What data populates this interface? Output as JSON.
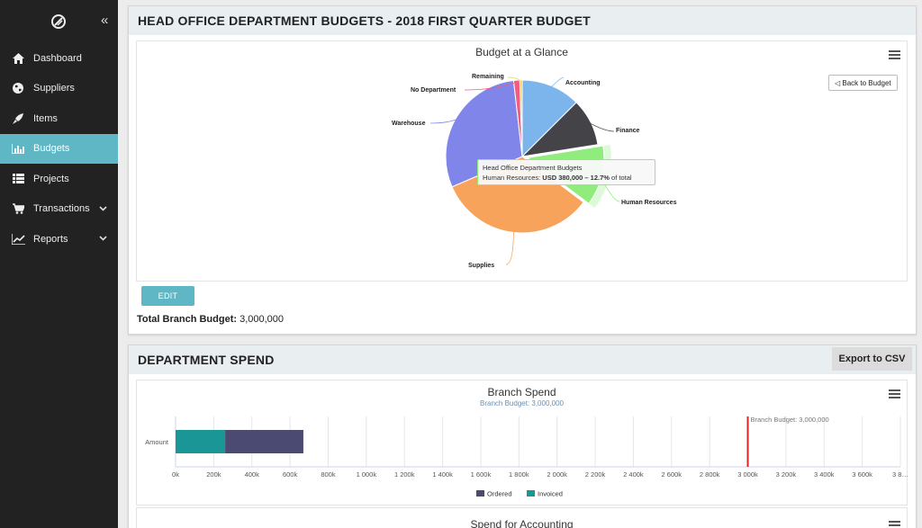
{
  "sidebar": {
    "items": [
      {
        "label": "Dashboard",
        "icon": "home-icon"
      },
      {
        "label": "Suppliers",
        "icon": "globe-icon"
      },
      {
        "label": "Items",
        "icon": "rocket-icon"
      },
      {
        "label": "Budgets",
        "icon": "bar-chart-icon",
        "active": true
      },
      {
        "label": "Projects",
        "icon": "list-icon"
      },
      {
        "label": "Transactions",
        "icon": "cart-icon"
      },
      {
        "label": "Reports",
        "icon": "line-chart-icon"
      }
    ]
  },
  "budget_panel": {
    "title": "HEAD OFFICE DEPARTMENT BUDGETS - 2018 FIRST QUARTER BUDGET",
    "back_label": "◁ Back to Budget",
    "tooltip": {
      "line1": "Head Office Department Budgets",
      "series": "Human Resources:",
      "value": "USD 380,000 – 12.7%",
      "suffix": "of total"
    },
    "edit_label": "EDIT",
    "total_label": "Total Branch Budget:",
    "total_value": "3,000,000"
  },
  "spend_panel": {
    "title": "DEPARTMENT SPEND",
    "export_label": "Export to CSV",
    "accounting_title": "Spend for Accounting"
  },
  "chart_data": [
    {
      "type": "pie",
      "title": "Budget at a Glance",
      "slices": [
        {
          "name": "Accounting",
          "value": 12.5,
          "color": "#7cb5ec"
        },
        {
          "name": "Finance",
          "value": 10.0,
          "color": "#434348"
        },
        {
          "name": "Human Resources",
          "value": 12.7,
          "color": "#90ed7d"
        },
        {
          "name": "Supplies",
          "value": 33.3,
          "color": "#f7a35c"
        },
        {
          "name": "Warehouse",
          "value": 29.7,
          "color": "#8085e9"
        },
        {
          "name": "No Department",
          "value": 1.3,
          "color": "#f15c80"
        },
        {
          "name": "Remaining",
          "value": 0.5,
          "color": "#e4d354"
        }
      ]
    },
    {
      "type": "bar",
      "title": "Branch Spend",
      "subtitle": "Branch Budget: 3,000,000",
      "categories": [
        "Amount"
      ],
      "series": [
        {
          "name": "Ordered",
          "values": [
            410000
          ],
          "color": "#4a4a73"
        },
        {
          "name": "Invoiced",
          "values": [
            260000
          ],
          "color": "#1a9696"
        }
      ],
      "plot_line": {
        "value": 3000000,
        "label": "Branch Budget: 3,000,000",
        "color": "#d9262b"
      },
      "xlim": [
        0,
        3800000
      ],
      "xticks": [
        "0k",
        "200k",
        "400k",
        "600k",
        "800k",
        "1 000k",
        "1 200k",
        "1 400k",
        "1 600k",
        "1 800k",
        "2 000k",
        "2 200k",
        "2 400k",
        "2 600k",
        "2 800k",
        "3 000k",
        "3 200k",
        "3 400k",
        "3 600k",
        "3 8…"
      ]
    }
  ]
}
